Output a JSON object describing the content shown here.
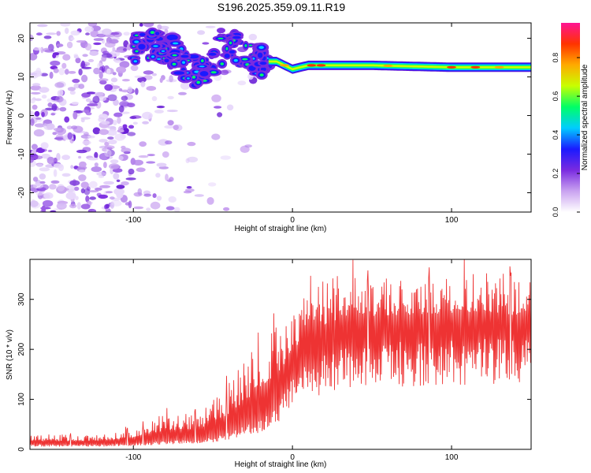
{
  "title": "S196.2025.359.09.11.R19",
  "chart_data": [
    {
      "type": "heatmap",
      "name": "spectrogram",
      "xlabel": "Height of straight line (km)",
      "ylabel": "Frequency (Hz)",
      "xlim": [
        -165,
        150
      ],
      "ylim": [
        -25,
        24
      ],
      "xticks": [
        -100,
        0,
        100
      ],
      "xtick_labels": [
        "-100",
        "0",
        "100"
      ],
      "yticks": [
        -20,
        -10,
        0,
        10,
        20
      ],
      "ytick_labels": [
        "-20",
        "-10",
        "0",
        "10",
        "20"
      ],
      "ridge": {
        "description_points_x": [
          -100,
          -80,
          -60,
          -50,
          -40,
          -30,
          -20,
          -10,
          0,
          10,
          20,
          50,
          100,
          148
        ],
        "description_points_y": [
          17,
          18,
          11,
          14,
          19,
          15,
          14,
          14,
          12,
          13,
          13,
          13,
          12.5,
          12.5
        ]
      },
      "colorbar": {
        "label": "Normalized spectral amplitude",
        "range": [
          0,
          0.98
        ],
        "ticks": [
          0.0,
          0.2,
          0.4,
          0.6,
          0.8
        ],
        "tick_labels": [
          "0.0",
          "0.2",
          "0.4",
          "0.6",
          "0.8"
        ],
        "colors": [
          "#ffffff",
          "#c9a2f0",
          "#7a2be0",
          "#1a1aff",
          "#00ccff",
          "#00ff66",
          "#c8ff00",
          "#ffaa00",
          "#ff3300",
          "#ff1493"
        ]
      }
    },
    {
      "type": "line",
      "name": "snr",
      "xlabel": "Height of straight line (km)",
      "ylabel": "SNR (10 * v/v)",
      "xlim": [
        -165,
        150
      ],
      "ylim": [
        0,
        380
      ],
      "xticks": [
        -100,
        0,
        100
      ],
      "xtick_labels": [
        "-100",
        "0",
        "100"
      ],
      "yticks": [
        0,
        100,
        200,
        300
      ],
      "ytick_labels": [
        "0",
        "100",
        "200",
        "300"
      ],
      "color": "#ee3333",
      "envelope": {
        "x": [
          -165,
          -140,
          -120,
          -100,
          -90,
          -80,
          -60,
          -50,
          -40,
          -30,
          -20,
          -10,
          -5,
          0,
          10,
          20,
          30,
          50,
          80,
          100,
          120,
          140,
          150
        ],
        "base": [
          10,
          10,
          10,
          12,
          15,
          18,
          20,
          25,
          35,
          50,
          60,
          90,
          120,
          150,
          185,
          200,
          215,
          225,
          230,
          230,
          235,
          230,
          240
        ],
        "peak": [
          30,
          30,
          32,
          45,
          60,
          75,
          80,
          100,
          140,
          180,
          240,
          260,
          270,
          290,
          320,
          340,
          350,
          345,
          345,
          350,
          355,
          340,
          360
        ]
      }
    }
  ]
}
